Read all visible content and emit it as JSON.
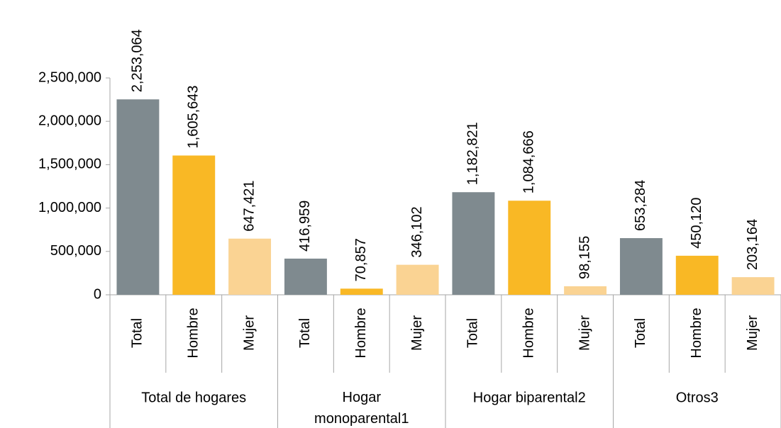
{
  "chart_data": {
    "type": "bar",
    "groups": [
      "Total de hogares",
      "Hogar monoparental1",
      "Hogar biparental2",
      "Otros3"
    ],
    "categories": [
      "Total",
      "Hombre",
      "Mujer",
      "Total",
      "Hombre",
      "Mujer",
      "Total",
      "Hombre",
      "Mujer",
      "Total",
      "Hombre",
      "Mujer"
    ],
    "values": [
      2253064,
      1605643,
      647421,
      416959,
      70857,
      346102,
      1182821,
      1084666,
      98155,
      653284,
      450120,
      203164
    ],
    "value_labels": [
      "2,253,064",
      "1,605,643",
      "647,421",
      "416,959",
      "70,857",
      "346,102",
      "1,182,821",
      "1,084,666",
      "98,155",
      "653,284",
      "450,120",
      "203,164"
    ],
    "colors": [
      "#7f8a8f",
      "#f9b825",
      "#fad393",
      "#7f8a8f",
      "#f9b825",
      "#fad393",
      "#7f8a8f",
      "#f9b825",
      "#fad393",
      "#7f8a8f",
      "#f9b825",
      "#fad393"
    ],
    "ylim": [
      0,
      2500000
    ],
    "yticks": [
      0,
      {
        "value": 500000,
        "label": "500,000"
      },
      {
        "value": 1000000,
        "label": "1,000,000"
      },
      {
        "value": 1500000,
        "label": "1,500,000"
      },
      {
        "value": 2000000,
        "label": "2,000,000"
      },
      {
        "value": 2500000,
        "label": "2,500,000"
      }
    ],
    "grid": false
  }
}
